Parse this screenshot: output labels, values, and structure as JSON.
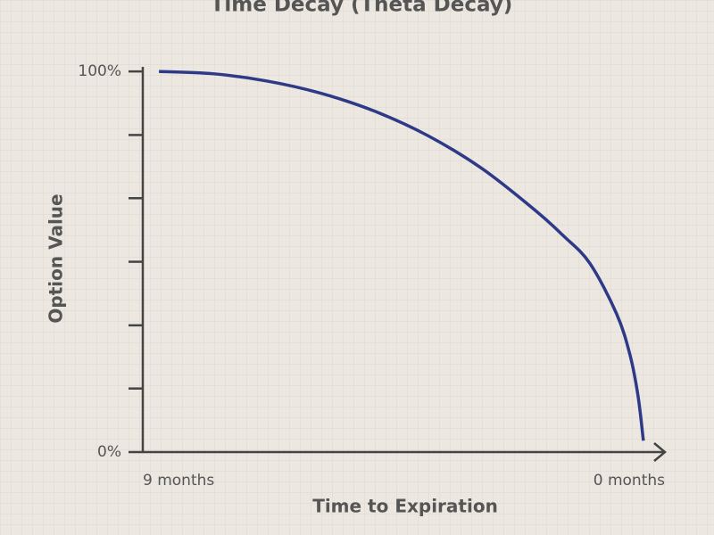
{
  "chart_data": {
    "type": "line",
    "title": "Time Decay (Theta Decay)",
    "x_label": "Time to Expiration",
    "y_label": "Option Value",
    "x": [
      9,
      8,
      7,
      6,
      5,
      4,
      3,
      2,
      1.5,
      1,
      0.5,
      0.25,
      0.1,
      0
    ],
    "series": [
      {
        "name": "Option Value",
        "color": "#2e3a87",
        "values": [
          100,
          99.4,
          97.5,
          94.3,
          89.6,
          83.1,
          74.5,
          63.4,
          57.0,
          49.7,
          36.4,
          25.6,
          14.8,
          3
        ]
      }
    ],
    "xlim": [
      9.3,
      -0.4
    ],
    "xticks": [
      {
        "value": 9,
        "label": "9 months"
      },
      {
        "value": 0,
        "label": "0 months"
      }
    ],
    "ylim": [
      0,
      101.2
    ],
    "yticks": [
      {
        "value": 0,
        "label": "0%"
      },
      {
        "value": 100,
        "label": "100%"
      }
    ],
    "yminor_ticks": [
      16.7,
      33.3,
      50,
      66.7,
      83.3
    ]
  }
}
